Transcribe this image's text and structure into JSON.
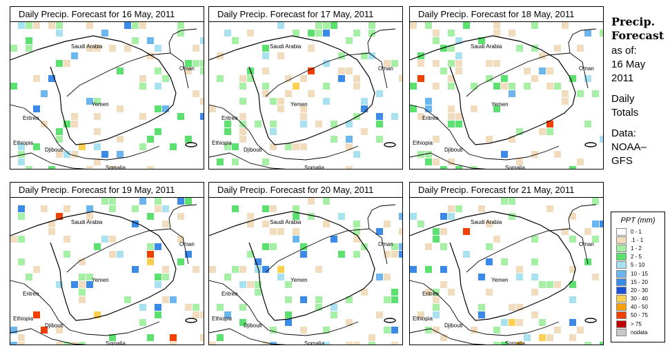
{
  "panels": [
    {
      "title": "Daily Precip. Forecast for  16 May, 2011"
    },
    {
      "title": "Daily Precip. Forecast for  17 May, 2011"
    },
    {
      "title": "Daily Precip. Forecast for  18 May, 2011"
    },
    {
      "title": "Daily Precip. Forecast for  19 May, 2011"
    },
    {
      "title": "Daily Precip. Forecast for  20 May, 2011"
    },
    {
      "title": "Daily Precip. Forecast for  21 May, 2011"
    }
  ],
  "map_labels": {
    "saudi": "Saudi Arabia",
    "oman": "Oman",
    "yemen": "Yemen",
    "eritrea": "Eritrea",
    "ethiopia": "Ethiopia",
    "djibouti": "Djibouti",
    "somalia": "Somalia"
  },
  "side": {
    "line1": "Precip.",
    "line2": "Forecast",
    "line3": "as of:",
    "line4": "16 May",
    "line5": "2011",
    "line6": "Daily",
    "line7": "Totals",
    "line8": "Data:",
    "line9": "NOAA–",
    "line10": "GFS"
  },
  "legend": {
    "title": "PPT (mm)",
    "items": [
      {
        "label": "0 - 1",
        "color": "#ffffff"
      },
      {
        "label": ".1 - 1",
        "color": "#f1dcbe"
      },
      {
        "label": "1 - 2",
        "color": "#a6f0a6"
      },
      {
        "label": "2 - 5",
        "color": "#5ce070"
      },
      {
        "label": "5 - 10",
        "color": "#a8e2f0"
      },
      {
        "label": "10 - 15",
        "color": "#6cb6f0"
      },
      {
        "label": "15 - 20",
        "color": "#3c8ae8"
      },
      {
        "label": "20 - 30",
        "color": "#1a52d8"
      },
      {
        "label": "30 - 40",
        "color": "#fcd050"
      },
      {
        "label": "40 - 50",
        "color": "#f8a000"
      },
      {
        "label": "50 - 75",
        "color": "#f04000"
      },
      {
        "label": "> 75",
        "color": "#c00000"
      },
      {
        "label": "nodata",
        "color": "#c8c8c8"
      }
    ]
  }
}
